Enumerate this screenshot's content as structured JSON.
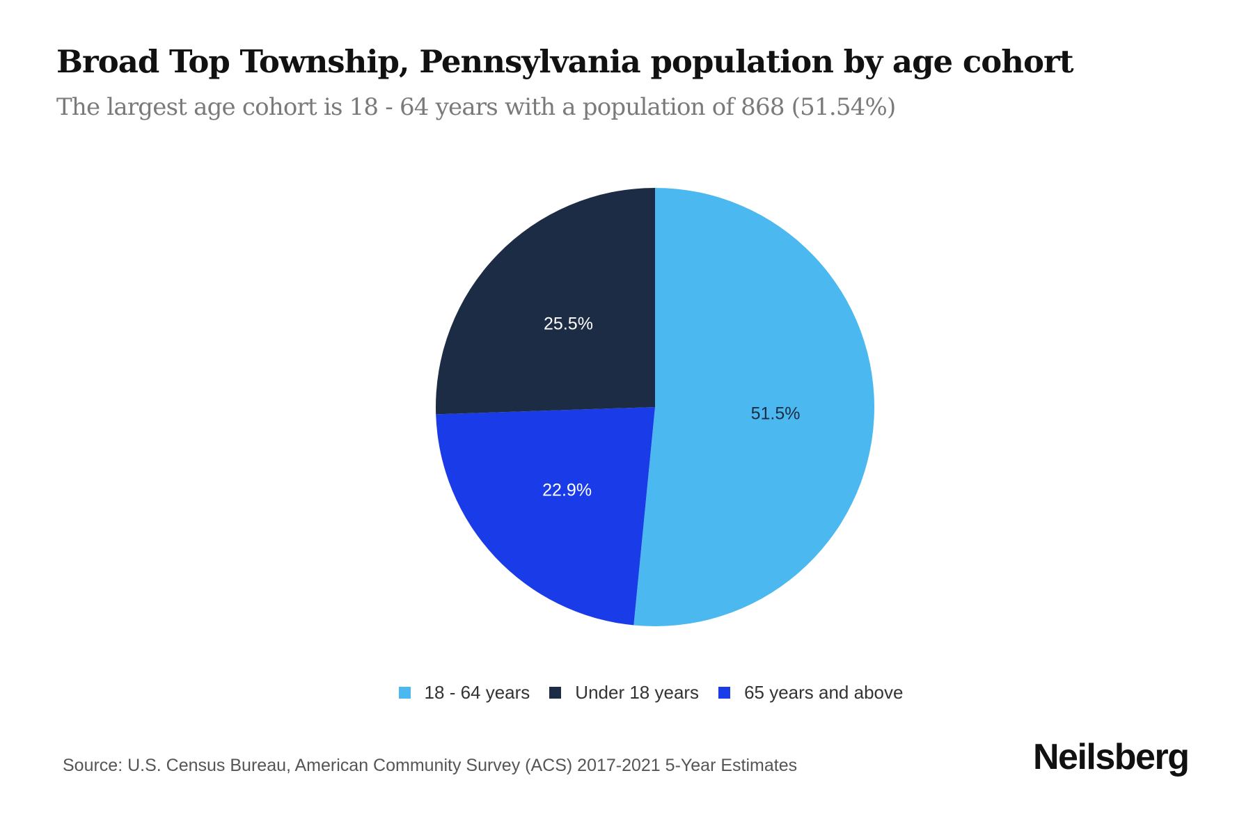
{
  "chart_data": {
    "type": "pie",
    "title": "Broad Top Township, Pennsylvania population by age cohort",
    "subtitle": "The largest age cohort is 18 - 64 years with a population of 868 (51.54%)",
    "slices": [
      {
        "label": "18 - 64 years",
        "value": 51.5,
        "display": "51.5%",
        "color": "#4bb8f0",
        "label_color": "#1b2c44"
      },
      {
        "label": "65 years and above",
        "value": 22.9,
        "display": "22.9%",
        "color": "#1a3be8",
        "label_color": "#ffffff"
      },
      {
        "label": "Under 18 years",
        "value": 25.5,
        "display": "25.5%",
        "color": "#1b2c44",
        "label_color": "#ffffff"
      }
    ],
    "legend": [
      {
        "label": "18 - 64 years",
        "color": "#4bb8f0"
      },
      {
        "label": "Under 18 years",
        "color": "#1b2c44"
      },
      {
        "label": "65 years and above",
        "color": "#1a3be8"
      }
    ],
    "legend_placement": "bottom",
    "start_angle": "top, clockwise"
  },
  "source": "Source: U.S. Census Bureau, American Community Survey (ACS) 2017-2021 5-Year Estimates",
  "brand": "Neilsberg"
}
